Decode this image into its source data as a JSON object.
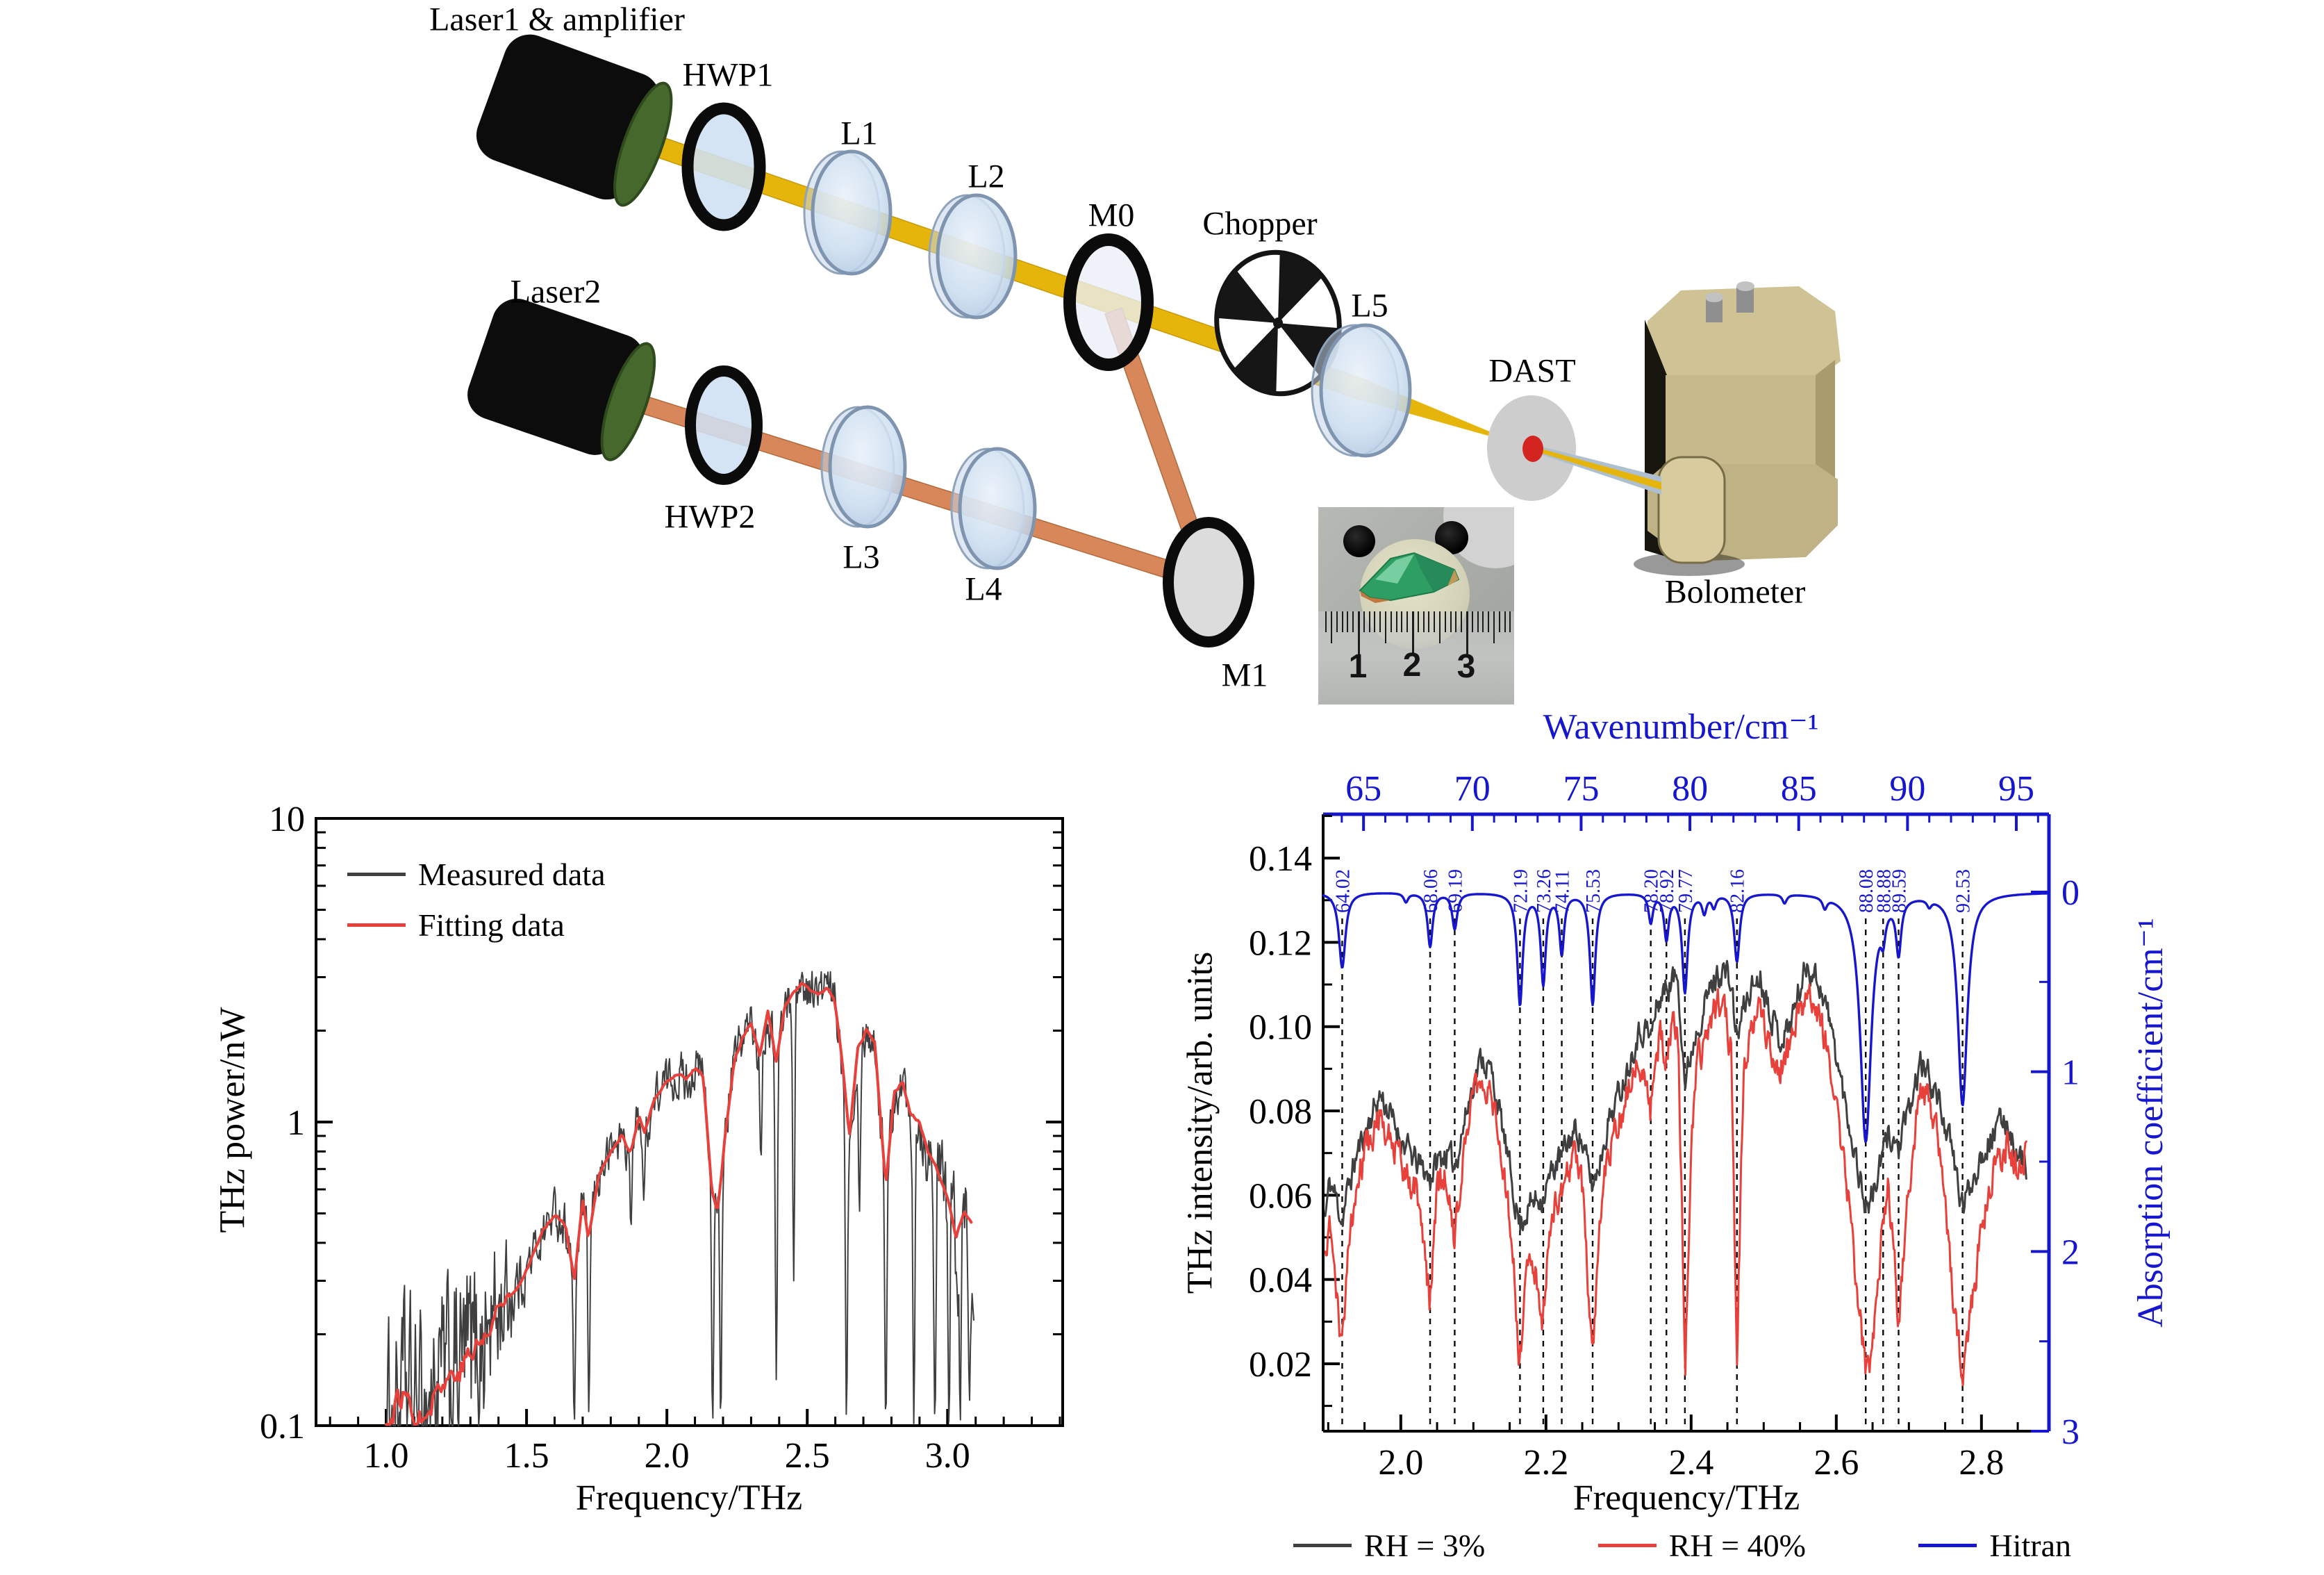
{
  "figure": {
    "diagram": {
      "labels": {
        "laser1": "Laser1 & amplifier",
        "hwp1": "HWP1",
        "l1": "L1",
        "l2": "L2",
        "m0": "M0",
        "chopper": "Chopper",
        "l5": "L5",
        "dast": "DAST",
        "laser2": "Laser2",
        "hwp2": "HWP2",
        "l3": "L3",
        "l4": "L4",
        "m1": "M1",
        "bolometer": "Bolometer"
      },
      "inset": {
        "ruler_numbers": [
          "1",
          "2",
          "3"
        ]
      }
    },
    "colors": {
      "measured": "#3f3f3f",
      "fit": "#e8403a",
      "rh3": "#3f3f3f",
      "rh40": "#e8403a",
      "hitran": "#1616cf",
      "beam_yellow": "#e6b50c",
      "beam_orange": "#d8875a",
      "dashed": "#0a0a0a"
    }
  },
  "chart_data": [
    {
      "type": "line",
      "title": "",
      "xlabel": "Frequency/THz",
      "ylabel": "THz power/nW",
      "x_scale": "linear",
      "y_scale": "log",
      "xlim": [
        0.75,
        3.41
      ],
      "ylim": [
        0.1,
        10
      ],
      "x_ticks": [
        1.0,
        1.5,
        2.0,
        2.5,
        3.0
      ],
      "x_tick_labels": [
        "1.0",
        "1.5",
        "2.0",
        "2.5",
        "3.0"
      ],
      "x_minor_step": 0.1,
      "y_ticks": [
        0.1,
        1,
        10
      ],
      "y_tick_labels": [
        "0.1",
        "1",
        "10"
      ],
      "grid": false,
      "legend_position": "top-left-inside",
      "legend": [
        {
          "label": "Measured data",
          "color": "#3f3f3f"
        },
        {
          "label": "Fitting data",
          "color": "#e8403a"
        }
      ],
      "series": [
        {
          "name": "Fitting data",
          "color": "#e8403a",
          "points": [
            [
              1.0,
              0.095
            ],
            [
              1.03,
              0.115
            ],
            [
              1.06,
              0.125
            ],
            [
              1.09,
              0.12
            ],
            [
              1.12,
              0.105
            ],
            [
              1.15,
              0.125
            ],
            [
              1.18,
              0.135
            ],
            [
              1.21,
              0.14
            ],
            [
              1.24,
              0.15
            ],
            [
              1.27,
              0.16
            ],
            [
              1.3,
              0.17
            ],
            [
              1.33,
              0.185
            ],
            [
              1.36,
              0.2
            ],
            [
              1.4,
              0.24
            ],
            [
              1.44,
              0.27
            ],
            [
              1.48,
              0.3
            ],
            [
              1.52,
              0.36
            ],
            [
              1.56,
              0.44
            ],
            [
              1.6,
              0.5
            ],
            [
              1.64,
              0.46
            ],
            [
              1.67,
              0.3
            ],
            [
              1.7,
              0.55
            ],
            [
              1.72,
              0.42
            ],
            [
              1.76,
              0.68
            ],
            [
              1.8,
              0.8
            ],
            [
              1.84,
              0.9
            ],
            [
              1.87,
              0.78
            ],
            [
              1.9,
              1.05
            ],
            [
              1.92,
              0.92
            ],
            [
              1.96,
              1.2
            ],
            [
              2.0,
              1.35
            ],
            [
              2.04,
              1.45
            ],
            [
              2.07,
              1.38
            ],
            [
              2.1,
              1.5
            ],
            [
              2.13,
              1.42
            ],
            [
              2.16,
              0.6
            ],
            [
              2.18,
              0.5
            ],
            [
              2.21,
              0.95
            ],
            [
              2.24,
              1.6
            ],
            [
              2.27,
              1.9
            ],
            [
              2.3,
              2.1
            ],
            [
              2.33,
              1.65
            ],
            [
              2.36,
              2.3
            ],
            [
              2.39,
              1.55
            ],
            [
              2.42,
              2.45
            ],
            [
              2.45,
              2.65
            ],
            [
              2.48,
              2.85
            ],
            [
              2.51,
              2.75
            ],
            [
              2.54,
              2.65
            ],
            [
              2.57,
              2.75
            ],
            [
              2.6,
              2.45
            ],
            [
              2.63,
              1.4
            ],
            [
              2.65,
              0.9
            ],
            [
              2.68,
              1.75
            ],
            [
              2.71,
              2.0
            ],
            [
              2.74,
              1.85
            ],
            [
              2.78,
              0.62
            ],
            [
              2.81,
              1.25
            ],
            [
              2.84,
              1.35
            ],
            [
              2.87,
              1.05
            ],
            [
              2.9,
              1.0
            ],
            [
              2.93,
              0.8
            ],
            [
              2.96,
              0.7
            ],
            [
              3.0,
              0.55
            ],
            [
              3.03,
              0.42
            ],
            [
              3.06,
              0.5
            ],
            [
              3.09,
              0.45
            ]
          ]
        },
        {
          "name": "Measured data",
          "color": "#3f3f3f",
          "derived_from": "Fitting data",
          "x_range": [
            1.0,
            3.095
          ],
          "noise_sigma_log10": {
            "low_f_end": 1.34,
            "low_sigma": 0.26,
            "mid_sigma": 0.065,
            "high_f_start": 2.86,
            "high_sigma": 0.2
          },
          "deep_dips_freq_level": [
            [
              1.67,
              0.1
            ],
            [
              1.722,
              0.11
            ],
            [
              1.872,
              0.45
            ],
            [
              1.918,
              0.55
            ],
            [
              2.163,
              0.1
            ],
            [
              2.192,
              0.1
            ],
            [
              2.335,
              0.75
            ],
            [
              2.39,
              0.14
            ],
            [
              2.452,
              0.3
            ],
            [
              2.64,
              0.1
            ],
            [
              2.686,
              0.5
            ],
            [
              2.78,
              0.1
            ],
            [
              2.88,
              0.1
            ],
            [
              2.955,
              0.1
            ],
            [
              3.005,
              0.1
            ],
            [
              3.045,
              0.1
            ],
            [
              3.078,
              0.12
            ]
          ]
        }
      ]
    },
    {
      "type": "line",
      "title": "",
      "xlabel": "Frequency/THz",
      "top_xlabel": "Wavenumber/cm⁻¹",
      "ylabel_left": "THz intensity/arb. units",
      "ylabel_right": "Absorption coefficient/cm⁻¹",
      "xlim": [
        1.893,
        2.893
      ],
      "ylim_left": [
        0.004,
        0.1504
      ],
      "ylim_right": [
        0,
        3
      ],
      "ylim_right_inverted": true,
      "x_ticks": [
        2.0,
        2.2,
        2.4,
        2.6,
        2.8
      ],
      "x_tick_labels": [
        "2.0",
        "2.2",
        "2.4",
        "2.6",
        "2.8"
      ],
      "x_minor_step": 0.05,
      "top_ticks_wavenumber": [
        65,
        70,
        75,
        80,
        85,
        90,
        95
      ],
      "top_tick_labels": [
        "65",
        "70",
        "75",
        "80",
        "85",
        "90",
        "95"
      ],
      "top_minor_step": 1,
      "y_ticks_left": [
        0.02,
        0.04,
        0.06,
        0.08,
        0.1,
        0.12,
        0.14
      ],
      "y_tick_labels_left": [
        "0.02",
        "0.04",
        "0.06",
        "0.08",
        "0.10",
        "0.12",
        "0.14"
      ],
      "y_ticks_right": [
        0,
        1,
        2,
        3
      ],
      "y_tick_labels_right": [
        "0",
        "1",
        "2",
        "3"
      ],
      "wavenumber_to_thz": 0.0299792458,
      "legend_position": "below",
      "legend": [
        {
          "label": "RH = 3%",
          "color": "#3f3f3f"
        },
        {
          "label": "RH = 40%",
          "color": "#e8403a"
        },
        {
          "label": "Hitran",
          "color": "#1616cf"
        }
      ],
      "hitran_lines": [
        {
          "wavenumber": 64.02,
          "amplitude": 0.42,
          "hwhm": 0.18,
          "labeled": true
        },
        {
          "wavenumber": 68.06,
          "amplitude": 0.3,
          "hwhm": 0.14,
          "labeled": true
        },
        {
          "wavenumber": 69.19,
          "amplitude": 0.2,
          "hwhm": 0.14,
          "labeled": true
        },
        {
          "wavenumber": 72.19,
          "amplitude": 0.62,
          "hwhm": 0.15,
          "labeled": true
        },
        {
          "wavenumber": 73.26,
          "amplitude": 0.5,
          "hwhm": 0.14,
          "labeled": true
        },
        {
          "wavenumber": 74.11,
          "amplitude": 0.33,
          "hwhm": 0.13,
          "labeled": true
        },
        {
          "wavenumber": 75.53,
          "amplitude": 0.62,
          "hwhm": 0.15,
          "labeled": true
        },
        {
          "wavenumber": 78.2,
          "amplitude": 0.16,
          "hwhm": 0.12,
          "labeled": true
        },
        {
          "wavenumber": 78.92,
          "amplitude": 0.25,
          "hwhm": 0.13,
          "labeled": true
        },
        {
          "wavenumber": 79.77,
          "amplitude": 0.55,
          "hwhm": 0.15,
          "labeled": true
        },
        {
          "wavenumber": 82.16,
          "amplitude": 0.38,
          "hwhm": 0.15,
          "labeled": true
        },
        {
          "wavenumber": 88.08,
          "amplitude": 1.38,
          "hwhm": 0.3,
          "labeled": true
        },
        {
          "wavenumber": 88.88,
          "amplitude": 0.14,
          "hwhm": 0.12,
          "labeled": true
        },
        {
          "wavenumber": 89.59,
          "amplitude": 0.3,
          "hwhm": 0.14,
          "labeled": true
        },
        {
          "wavenumber": 92.53,
          "amplitude": 1.18,
          "hwhm": 0.26,
          "labeled": true
        },
        {
          "wavenumber": 66.95,
          "amplitude": 0.05,
          "hwhm": 0.12,
          "labeled": false
        },
        {
          "wavenumber": 80.66,
          "amplitude": 0.1,
          "hwhm": 0.12,
          "labeled": false
        },
        {
          "wavenumber": 81.1,
          "amplitude": 0.07,
          "hwhm": 0.12,
          "labeled": false
        },
        {
          "wavenumber": 84.35,
          "amplitude": 0.05,
          "hwhm": 0.12,
          "labeled": false
        },
        {
          "wavenumber": 86.2,
          "amplitude": 0.06,
          "hwhm": 0.12,
          "labeled": false
        },
        {
          "wavenumber": 91.0,
          "amplitude": 0.04,
          "hwhm": 0.12,
          "labeled": false
        }
      ],
      "series_columns": [
        "frequency_thz",
        "rh3_intensity",
        "rh40_intensity"
      ],
      "series_noise_amp": {
        "rh3": 0.0026,
        "rh40": 0.0031
      },
      "series_anchors": [
        [
          1.896,
          0.055,
          0.045
        ],
        [
          1.902,
          0.063,
          0.055
        ],
        [
          1.91,
          0.06,
          0.04
        ],
        [
          1.919,
          0.054,
          0.022
        ],
        [
          1.928,
          0.062,
          0.05
        ],
        [
          1.94,
          0.07,
          0.063
        ],
        [
          1.955,
          0.077,
          0.072
        ],
        [
          1.972,
          0.084,
          0.079
        ],
        [
          1.988,
          0.078,
          0.073
        ],
        [
          2.005,
          0.072,
          0.066
        ],
        [
          2.02,
          0.068,
          0.062
        ],
        [
          2.032,
          0.066,
          0.05
        ],
        [
          2.04,
          0.064,
          0.034
        ],
        [
          2.05,
          0.068,
          0.06
        ],
        [
          2.062,
          0.07,
          0.065
        ],
        [
          2.074,
          0.067,
          0.049
        ],
        [
          2.086,
          0.076,
          0.071
        ],
        [
          2.1,
          0.087,
          0.082
        ],
        [
          2.112,
          0.093,
          0.088
        ],
        [
          2.125,
          0.089,
          0.084
        ],
        [
          2.14,
          0.076,
          0.068
        ],
        [
          2.152,
          0.064,
          0.052
        ],
        [
          2.164,
          0.053,
          0.019
        ],
        [
          2.172,
          0.056,
          0.04
        ],
        [
          2.18,
          0.058,
          0.048
        ],
        [
          2.188,
          0.059,
          0.04
        ],
        [
          2.196,
          0.06,
          0.03
        ],
        [
          2.205,
          0.064,
          0.052
        ],
        [
          2.215,
          0.068,
          0.058
        ],
        [
          2.222,
          0.069,
          0.06
        ],
        [
          2.232,
          0.073,
          0.067
        ],
        [
          2.243,
          0.076,
          0.07
        ],
        [
          2.252,
          0.071,
          0.06
        ],
        [
          2.264,
          0.062,
          0.02
        ],
        [
          2.274,
          0.068,
          0.055
        ],
        [
          2.285,
          0.077,
          0.07
        ],
        [
          2.298,
          0.083,
          0.077
        ],
        [
          2.312,
          0.09,
          0.084
        ],
        [
          2.325,
          0.098,
          0.09
        ],
        [
          2.337,
          0.1,
          0.088
        ],
        [
          2.344,
          0.097,
          0.08
        ],
        [
          2.352,
          0.104,
          0.095
        ],
        [
          2.36,
          0.108,
          0.098
        ],
        [
          2.366,
          0.109,
          0.092
        ],
        [
          2.374,
          0.111,
          0.1
        ],
        [
          2.382,
          0.112,
          0.098
        ],
        [
          2.392,
          0.086,
          0.02
        ],
        [
          2.4,
          0.094,
          0.07
        ],
        [
          2.408,
          0.1,
          0.09
        ],
        [
          2.42,
          0.106,
          0.098
        ],
        [
          2.432,
          0.111,
          0.103
        ],
        [
          2.444,
          0.114,
          0.106
        ],
        [
          2.455,
          0.11,
          0.095
        ],
        [
          2.463,
          0.097,
          0.021
        ],
        [
          2.472,
          0.104,
          0.088
        ],
        [
          2.482,
          0.109,
          0.1
        ],
        [
          2.495,
          0.112,
          0.104
        ],
        [
          2.508,
          0.105,
          0.097
        ],
        [
          2.522,
          0.097,
          0.09
        ],
        [
          2.535,
          0.1,
          0.094
        ],
        [
          2.548,
          0.108,
          0.102
        ],
        [
          2.56,
          0.115,
          0.108
        ],
        [
          2.572,
          0.112,
          0.105
        ],
        [
          2.585,
          0.106,
          0.098
        ],
        [
          2.598,
          0.095,
          0.086
        ],
        [
          2.612,
          0.082,
          0.065
        ],
        [
          2.625,
          0.071,
          0.045
        ],
        [
          2.634,
          0.063,
          0.028
        ],
        [
          2.641,
          0.057,
          0.017
        ],
        [
          2.65,
          0.06,
          0.022
        ],
        [
          2.658,
          0.065,
          0.04
        ],
        [
          2.665,
          0.07,
          0.055
        ],
        [
          2.672,
          0.075,
          0.062
        ],
        [
          2.679,
          0.073,
          0.048
        ],
        [
          2.686,
          0.071,
          0.029
        ],
        [
          2.694,
          0.076,
          0.05
        ],
        [
          2.704,
          0.082,
          0.068
        ],
        [
          2.715,
          0.091,
          0.086
        ],
        [
          2.726,
          0.089,
          0.083
        ],
        [
          2.738,
          0.084,
          0.075
        ],
        [
          2.75,
          0.077,
          0.058
        ],
        [
          2.762,
          0.068,
          0.035
        ],
        [
          2.774,
          0.057,
          0.016
        ],
        [
          2.786,
          0.063,
          0.032
        ],
        [
          2.798,
          0.069,
          0.05
        ],
        [
          2.81,
          0.073,
          0.063
        ],
        [
          2.822,
          0.076,
          0.069
        ],
        [
          2.835,
          0.078,
          0.072
        ],
        [
          2.848,
          0.07,
          0.066
        ],
        [
          2.862,
          0.067,
          0.07
        ]
      ]
    }
  ]
}
